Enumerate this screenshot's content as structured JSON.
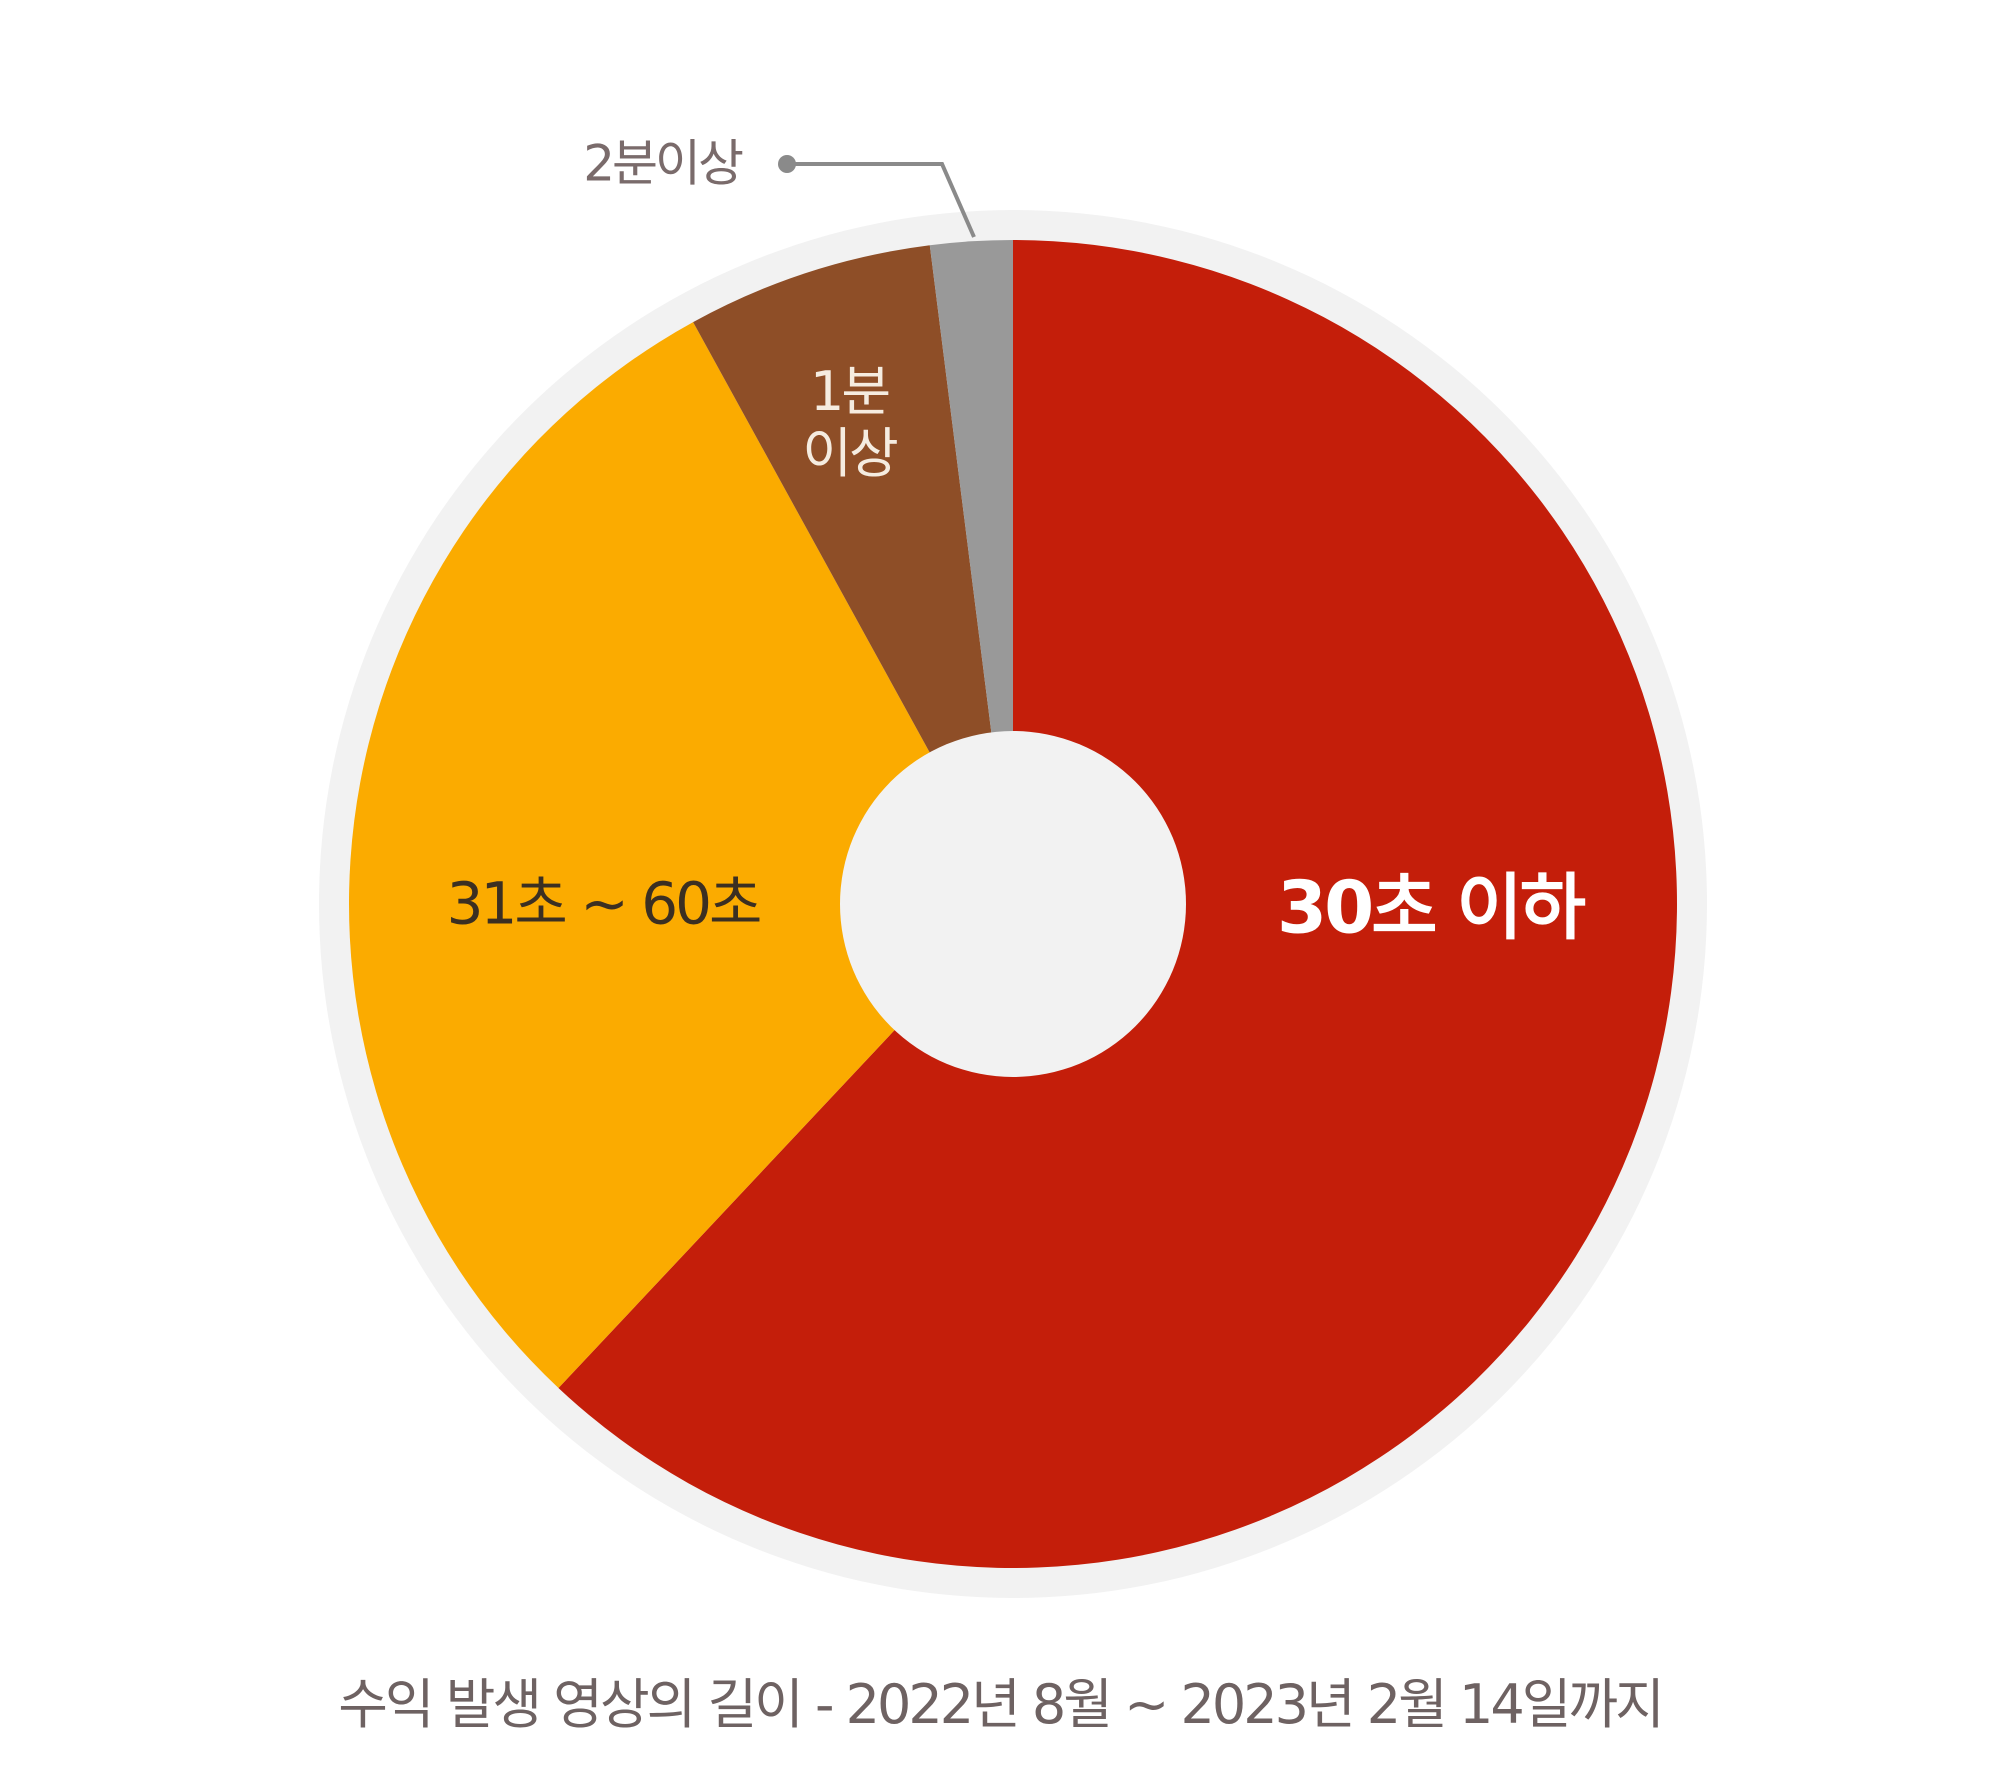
{
  "chart_data": {
    "type": "pie",
    "categories": [
      "30초 이하",
      "31초 ~ 60초",
      "1분 이상",
      "2분이상"
    ],
    "values": [
      62,
      30,
      6,
      2
    ],
    "colors": [
      "#c41e0a",
      "#fbab00",
      "#8e4e27",
      "#999999"
    ],
    "caption": "수익 발생 영상의 길이 - 2022년 8월 ~ 2023년 2월 14일까지"
  }
}
